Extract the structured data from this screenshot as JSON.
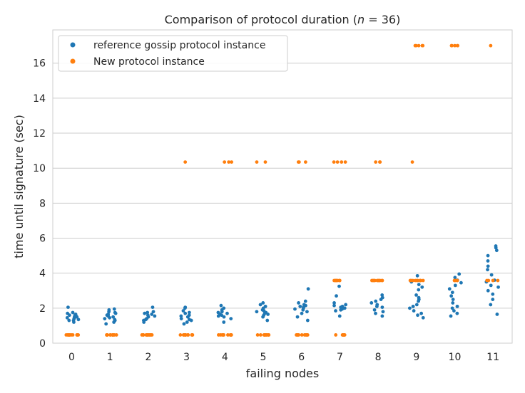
{
  "chart_data": {
    "type": "scatter",
    "style": "strip",
    "title": "Comparison of protocol duration (",
    "title_math_n": "n",
    "title_math_eq": " = 36",
    "title_end": ")",
    "xlabel": "failing nodes",
    "ylabel": "time until signature (sec)",
    "categories": [
      "0",
      "1",
      "2",
      "3",
      "4",
      "5",
      "6",
      "7",
      "8",
      "9",
      "10",
      "11"
    ],
    "ylim": [
      0,
      17.9
    ],
    "yticks": [
      "0",
      "2",
      "4",
      "6",
      "8",
      "10",
      "12",
      "14",
      "16"
    ],
    "grid": true,
    "legend_position": "top-left",
    "series": [
      {
        "name": "reference gossip protocol instance",
        "color": "#1f77b4",
        "values": [
          [
            1.2,
            1.3,
            1.3,
            1.35,
            1.4,
            1.4,
            1.45,
            1.5,
            1.5,
            1.55,
            1.6,
            1.6,
            1.65,
            1.7,
            1.75,
            2.05
          ],
          [
            1.1,
            1.2,
            1.3,
            1.35,
            1.4,
            1.45,
            1.5,
            1.55,
            1.6,
            1.65,
            1.7,
            1.75,
            1.8,
            1.9,
            1.95
          ],
          [
            1.2,
            1.3,
            1.35,
            1.4,
            1.5,
            1.55,
            1.6,
            1.65,
            1.7,
            1.75,
            1.8,
            2.05
          ],
          [
            1.1,
            1.2,
            1.3,
            1.35,
            1.4,
            1.5,
            1.55,
            1.6,
            1.7,
            1.75,
            1.85,
            2.0,
            2.05
          ],
          [
            1.2,
            1.4,
            1.5,
            1.55,
            1.6,
            1.65,
            1.7,
            1.75,
            1.8,
            1.9,
            2.0,
            2.15
          ],
          [
            1.3,
            1.5,
            1.6,
            1.65,
            1.7,
            1.75,
            1.8,
            1.85,
            1.9,
            2.0,
            2.1,
            2.2,
            2.3
          ],
          [
            1.3,
            1.5,
            1.7,
            1.8,
            1.9,
            1.95,
            2.0,
            2.05,
            2.1,
            2.15,
            2.2,
            2.3,
            2.4,
            3.1
          ],
          [
            1.55,
            1.85,
            1.9,
            1.95,
            2.0,
            2.05,
            2.1,
            2.15,
            2.2,
            2.3,
            2.7,
            3.25
          ],
          [
            1.55,
            1.7,
            1.8,
            1.9,
            2.05,
            2.1,
            2.2,
            2.3,
            2.4,
            2.5,
            2.6,
            2.75
          ],
          [
            1.45,
            1.6,
            1.7,
            1.85,
            2.0,
            2.1,
            2.2,
            2.4,
            2.5,
            2.6,
            2.75,
            3.05,
            3.2,
            3.35,
            3.5,
            3.85
          ],
          [
            1.55,
            1.7,
            1.85,
            2.0,
            2.1,
            2.3,
            2.5,
            2.7,
            2.9,
            3.1,
            3.3,
            3.45,
            3.6,
            3.75,
            3.95
          ],
          [
            1.65,
            2.2,
            2.5,
            2.8,
            3.0,
            3.2,
            3.3,
            3.5,
            3.6,
            3.9,
            4.2,
            4.4,
            4.7,
            5.0,
            5.3,
            5.45,
            5.55
          ]
        ]
      },
      {
        "name": "New protocol instance",
        "color": "#ff7f0e",
        "values": [
          [
            0.47,
            0.47,
            0.47,
            0.47,
            0.47,
            0.47,
            0.47,
            0.47,
            0.47,
            0.47,
            0.47,
            0.47
          ],
          [
            0.47,
            0.47,
            0.47,
            0.47,
            0.47,
            0.47,
            0.47,
            0.47,
            0.47,
            0.47,
            0.47,
            0.47
          ],
          [
            0.47,
            0.47,
            0.47,
            0.47,
            0.47,
            0.47,
            0.47,
            0.47,
            0.47,
            0.47,
            0.47,
            0.47
          ],
          [
            0.47,
            0.47,
            0.47,
            0.47,
            0.47,
            0.47,
            0.47,
            0.47,
            0.47,
            0.47,
            0.47,
            10.35
          ],
          [
            0.47,
            0.47,
            0.47,
            0.47,
            0.47,
            0.47,
            0.47,
            0.47,
            0.47,
            0.47,
            10.35,
            10.35,
            10.35
          ],
          [
            0.47,
            0.47,
            0.47,
            0.47,
            0.47,
            0.47,
            0.47,
            0.47,
            0.47,
            0.47,
            10.35,
            10.35
          ],
          [
            0.47,
            0.47,
            0.47,
            0.47,
            0.47,
            0.47,
            0.47,
            0.47,
            0.47,
            0.47,
            10.35,
            10.35,
            10.35
          ],
          [
            0.47,
            0.47,
            0.47,
            0.47,
            0.47,
            0.47,
            0.47,
            0.47,
            3.58,
            3.58,
            3.58,
            3.58,
            3.58,
            3.58,
            3.58,
            10.35,
            10.35,
            10.35,
            10.35
          ],
          [
            3.58,
            3.58,
            3.58,
            3.58,
            3.58,
            3.58,
            3.58,
            3.58,
            3.58,
            3.58,
            10.35,
            10.35,
            10.35
          ],
          [
            3.58,
            3.58,
            3.58,
            3.58,
            3.58,
            3.58,
            3.58,
            3.58,
            3.58,
            3.58,
            10.35,
            17.0,
            17.0,
            17.0,
            17.0,
            17.0
          ],
          [
            3.58,
            3.58,
            3.58,
            3.58,
            17.0,
            17.0,
            17.0,
            17.0,
            17.0
          ],
          [
            3.58,
            3.58,
            3.58,
            3.58,
            17.0
          ]
        ]
      }
    ]
  }
}
